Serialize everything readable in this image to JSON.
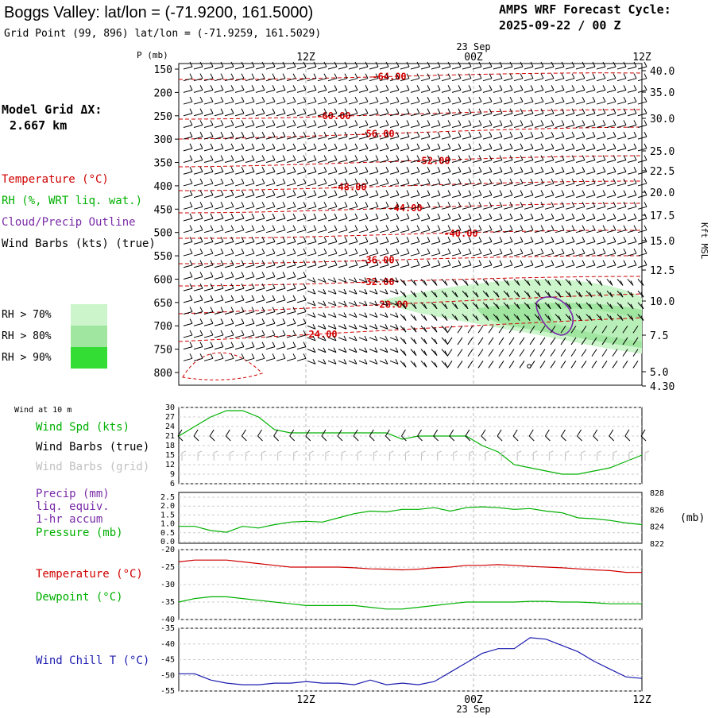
{
  "header": {
    "title": "Boggs Valley:  lat/lon = (-71.9200, 161.5000)",
    "subtitle": "Grid Point (99, 896) lat/lon = (-71.9259, 161.5029)",
    "forecast_line1": "AMPS WRF Forecast Cycle:",
    "forecast_line2": "2025-09-22 / 00  Z",
    "model_grid_label": "Model Grid ΔX:",
    "model_grid_value": "2.667 km"
  },
  "time_axis": {
    "ticks": [
      "12Z",
      "00Z",
      "12Z"
    ],
    "date_label": "23 Sep"
  },
  "colors": {
    "temperature": "#d00000",
    "rh": "#00b000",
    "cloud": "#7a2aa8",
    "dewpoint": "#00b000",
    "wind_chill": "#1c1cb0",
    "rh70": "#ccf5cc",
    "rh80": "#a0e6a0",
    "rh90": "#33dd33"
  },
  "chart_data": [
    {
      "type": "line",
      "name": "upper_air_cross_section",
      "title": "",
      "ylabel": "P (mb)",
      "y2label": "Kft MSL",
      "y_ticks": [
        150,
        200,
        250,
        300,
        350,
        400,
        450,
        500,
        550,
        600,
        650,
        700,
        750,
        800
      ],
      "right_ticks": [
        "40.0",
        "35.0",
        "30.0",
        "25.0",
        "22.5",
        "20.0",
        "17.5",
        "15.0",
        "12.5",
        "10.0",
        "7.5",
        "5.0",
        "4.30"
      ],
      "legend": [
        {
          "label": "Temperature (°C)",
          "color": "#d00000"
        },
        {
          "label": "RH (%, WRT liq. wat.)",
          "color": "#00b000"
        },
        {
          "label": "Cloud/Precip Outline",
          "color": "#7a2aa8"
        },
        {
          "label": "Wind Barbs (kts) (true)",
          "color": "#000000"
        }
      ],
      "rh_legend": [
        "RH > 70%",
        "RH > 80%",
        "RH > 90%"
      ],
      "isotherm_labels": [
        "-64.00",
        "-60.00",
        "-56.00",
        "-52.00",
        "-48.00",
        "-44.00",
        "-40.00",
        "-36.00",
        "-32.00",
        "-28.00",
        "-24.00"
      ]
    },
    {
      "type": "line",
      "name": "wind_at_10m",
      "header": "Wind at 10 m",
      "legend": [
        "Wind Spd (kts)",
        "Wind Barbs (true)",
        "Wind Barbs (grid)"
      ],
      "y_ticks": [
        30,
        27,
        24,
        21,
        18,
        15,
        12,
        9,
        6
      ],
      "ylim": [
        6,
        30
      ],
      "x": [
        0,
        2,
        4,
        6,
        8,
        10,
        12,
        14,
        16,
        18,
        20,
        22,
        24,
        26,
        28,
        30,
        32,
        34,
        36,
        38,
        40,
        42,
        44,
        46,
        48,
        50,
        52,
        54,
        56,
        58
      ],
      "series": [
        {
          "name": "Wind Spd (kts)",
          "color": "#00b000",
          "values": [
            21,
            24,
            27,
            29,
            29,
            27,
            23,
            22,
            22,
            22,
            22,
            22,
            22,
            22,
            20,
            21,
            21,
            21,
            21,
            18,
            16,
            12,
            11,
            10,
            9,
            9,
            10,
            11,
            13,
            15
          ]
        }
      ]
    },
    {
      "type": "line",
      "name": "precip_pressure",
      "legend": [
        "Precip (mm)",
        "liq. equiv.",
        "1-hr accum",
        "Pressure (mb)"
      ],
      "y_ticks": [
        "2.5",
        "2.0",
        "1.5",
        "1.0",
        "0.5",
        "0.0"
      ],
      "y2_ticks": [
        "828",
        "826",
        "824",
        "822"
      ],
      "y2_label": "(mb)",
      "ylim": [
        822,
        828
      ],
      "series": [
        {
          "name": "Pressure (mb)",
          "color": "#00b000",
          "values": [
            824.0,
            824.0,
            823.5,
            823.3,
            824.0,
            823.8,
            824.2,
            824.5,
            824.6,
            824.5,
            825.0,
            825.5,
            825.8,
            825.7,
            826.0,
            826.0,
            826.2,
            825.8,
            826.2,
            826.3,
            826.2,
            826.0,
            826.1,
            825.8,
            825.6,
            825.0,
            824.9,
            824.7,
            824.4,
            824.2
          ]
        }
      ]
    },
    {
      "type": "line",
      "name": "temperature_dewpoint",
      "legend": [
        "Temperature (°C)",
        "Dewpoint (°C)"
      ],
      "y_ticks": [
        -20,
        -25,
        -30,
        -35,
        -40
      ],
      "ylim": [
        -40,
        -20
      ],
      "series": [
        {
          "name": "Temperature (°C)",
          "color": "#d00000",
          "values": [
            -23.5,
            -23.0,
            -23.0,
            -23.0,
            -23.5,
            -24.0,
            -24.5,
            -25.0,
            -25.0,
            -25.0,
            -25.0,
            -25.2,
            -25.5,
            -25.6,
            -25.8,
            -25.6,
            -25.2,
            -25.0,
            -24.5,
            -24.5,
            -24.3,
            -24.5,
            -24.8,
            -25.0,
            -25.2,
            -25.5,
            -25.8,
            -26.0,
            -26.5,
            -26.5
          ]
        },
        {
          "name": "Dewpoint (°C)",
          "color": "#00b000",
          "values": [
            -35.0,
            -34.0,
            -33.5,
            -33.5,
            -34.0,
            -34.5,
            -35.0,
            -35.5,
            -36.0,
            -36.0,
            -36.0,
            -36.0,
            -36.5,
            -37.0,
            -37.0,
            -36.5,
            -36.0,
            -35.5,
            -35.0,
            -35.0,
            -35.0,
            -35.0,
            -34.8,
            -34.8,
            -35.0,
            -35.0,
            -35.2,
            -35.5,
            -35.5,
            -35.5
          ]
        }
      ]
    },
    {
      "type": "line",
      "name": "wind_chill",
      "legend": [
        "Wind Chill T (°C)"
      ],
      "y_ticks": [
        -35,
        -40,
        -45,
        -50,
        -55
      ],
      "ylim": [
        -55,
        -35
      ],
      "series": [
        {
          "name": "Wind Chill T (°C)",
          "color": "#1c1cb0",
          "values": [
            -49.5,
            -49.5,
            -51.5,
            -52.5,
            -53.0,
            -53.0,
            -52.5,
            -52.5,
            -52.0,
            -52.5,
            -52.5,
            -53.0,
            -51.5,
            -53.0,
            -52.5,
            -53.0,
            -52.0,
            -49.0,
            -46.0,
            -43.0,
            -41.5,
            -41.5,
            -38.0,
            -38.5,
            -40.5,
            -42.5,
            -45.5,
            -48.0,
            -50.5,
            -51.0
          ]
        }
      ]
    }
  ]
}
